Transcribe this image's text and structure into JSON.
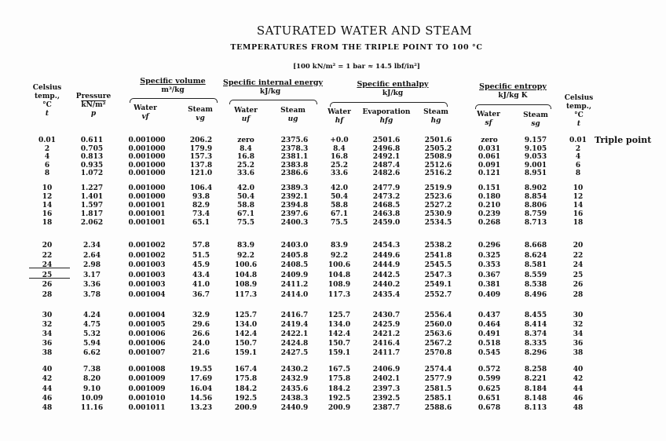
{
  "title": "SATURATED WATER AND STEAM",
  "subtitle": "TEMPERATURES FROM THE TRIPLE POINT TO 100 °C",
  "note": "[100 kN/m² = 1 bar ≈ 14.5 lbf/in²]",
  "headers": {
    "temp_left": [
      "Celsius",
      "temp.,",
      "°C",
      "t"
    ],
    "pressure": [
      "Pressure",
      "kN/m²",
      "p"
    ],
    "specific_volume": {
      "group": "Specific volume",
      "unit": "m³/kg",
      "water": [
        "Water",
        "vf"
      ],
      "steam": [
        "Steam",
        "vg"
      ]
    },
    "internal_energy": {
      "group": "Specific internal energy",
      "unit": "kJ/kg",
      "water": [
        "Water",
        "uf"
      ],
      "steam": [
        "Steam",
        "ug"
      ]
    },
    "enthalpy": {
      "group": "Specific enthalpy",
      "unit": "kJ/kg",
      "water": [
        "Water",
        "hf"
      ],
      "evap": [
        "Evaporation",
        "hfg"
      ],
      "steam": [
        "Steam",
        "hg"
      ]
    },
    "entropy": {
      "group": "Specific entropy",
      "unit": "kJ/kg K",
      "water": [
        "Water",
        "sf"
      ],
      "steam": [
        "Steam",
        "sg"
      ]
    },
    "temp_right": [
      "Celsius",
      "temp.,",
      "°C",
      "t"
    ]
  },
  "triple_point_label": "Triple point",
  "groups": [
    [
      [
        "0.01",
        "0.611",
        "0.001000",
        "206.2",
        "zero",
        "2375.6",
        "+0.0",
        "2501.6",
        "2501.6",
        "zero",
        "9.157",
        "0.01"
      ],
      [
        "2",
        "0.705",
        "0.001000",
        "179.9",
        "8.4",
        "2378.3",
        "8.4",
        "2496.8",
        "2505.2",
        "0.031",
        "9.105",
        "2"
      ],
      [
        "4",
        "0.813",
        "0.001000",
        "157.3",
        "16.8",
        "2381.1",
        "16.8",
        "2492.1",
        "2508.9",
        "0.061",
        "9.053",
        "4"
      ],
      [
        "6",
        "0.935",
        "0.001000",
        "137.8",
        "25.2",
        "2383.8",
        "25.2",
        "2487.4",
        "2512.6",
        "0.091",
        "9.001",
        "6"
      ],
      [
        "8",
        "1.072",
        "0.001000",
        "121.0",
        "33.6",
        "2386.6",
        "33.6",
        "2482.6",
        "2516.2",
        "0.121",
        "8.951",
        "8"
      ]
    ],
    [
      [
        "10",
        "1.227",
        "0.001000",
        "106.4",
        "42.0",
        "2389.3",
        "42.0",
        "2477.9",
        "2519.9",
        "0.151",
        "8.902",
        "10"
      ],
      [
        "12",
        "1.401",
        "0.001000",
        "93.8",
        "50.4",
        "2392.1",
        "50.4",
        "2473.2",
        "2523.6",
        "0.180",
        "8.854",
        "12"
      ],
      [
        "14",
        "1.597",
        "0.001001",
        "82.9",
        "58.8",
        "2394.8",
        "58.8",
        "2468.5",
        "2527.2",
        "0.210",
        "8.806",
        "14"
      ],
      [
        "16",
        "1.817",
        "0.001001",
        "73.4",
        "67.1",
        "2397.6",
        "67.1",
        "2463.8",
        "2530.9",
        "0.239",
        "8.759",
        "16"
      ],
      [
        "18",
        "2.062",
        "0.001001",
        "65.1",
        "75.5",
        "2400.3",
        "75.5",
        "2459.0",
        "2534.5",
        "0.268",
        "8.713",
        "18"
      ]
    ],
    [
      [
        "20",
        "2.34",
        "0.001002",
        "57.8",
        "83.9",
        "2403.0",
        "83.9",
        "2454.3",
        "2538.2",
        "0.296",
        "8.668",
        "20"
      ],
      [
        "22",
        "2.64",
        "0.001002",
        "51.5",
        "92.2",
        "2405.8",
        "92.2",
        "2449.6",
        "2541.8",
        "0.325",
        "8.624",
        "22"
      ],
      [
        "24",
        "2.98",
        "0.001003",
        "45.9",
        "100.6",
        "2408.5",
        "100.6",
        "2444.9",
        "2545.5",
        "0.353",
        "8.581",
        "24"
      ],
      [
        "25",
        "3.17",
        "0.001003",
        "43.4",
        "104.8",
        "2409.9",
        "104.8",
        "2442.5",
        "2547.3",
        "0.367",
        "8.559",
        "25"
      ],
      [
        "26",
        "3.36",
        "0.001003",
        "41.0",
        "108.9",
        "2411.2",
        "108.9",
        "2440.2",
        "2549.1",
        "0.381",
        "8.538",
        "26"
      ],
      [
        "28",
        "3.78",
        "0.001004",
        "36.7",
        "117.3",
        "2414.0",
        "117.3",
        "2435.4",
        "2552.7",
        "0.409",
        "8.496",
        "28"
      ]
    ],
    [
      [
        "30",
        "4.24",
        "0.001004",
        "32.9",
        "125.7",
        "2416.7",
        "125.7",
        "2430.7",
        "2556.4",
        "0.437",
        "8.455",
        "30"
      ],
      [
        "32",
        "4.75",
        "0.001005",
        "29.6",
        "134.0",
        "2419.4",
        "134.0",
        "2425.9",
        "2560.0",
        "0.464",
        "8.414",
        "32"
      ],
      [
        "34",
        "5.32",
        "0.001006",
        "26.6",
        "142.4",
        "2422.1",
        "142.4",
        "2421.2",
        "2563.6",
        "0.491",
        "8.374",
        "34"
      ],
      [
        "36",
        "5.94",
        "0.001006",
        "24.0",
        "150.7",
        "2424.8",
        "150.7",
        "2416.4",
        "2567.2",
        "0.518",
        "8.335",
        "36"
      ],
      [
        "38",
        "6.62",
        "0.001007",
        "21.6",
        "159.1",
        "2427.5",
        "159.1",
        "2411.7",
        "2570.8",
        "0.545",
        "8.296",
        "38"
      ]
    ],
    [
      [
        "40",
        "7.38",
        "0.001008",
        "19.55",
        "167.4",
        "2430.2",
        "167.5",
        "2406.9",
        "2574.4",
        "0.572",
        "8.258",
        "40"
      ],
      [
        "42",
        "8.20",
        "0.001009",
        "17.69",
        "175.8",
        "2432.9",
        "175.8",
        "2402.1",
        "2577.9",
        "0.599",
        "8.221",
        "42"
      ],
      [
        "44",
        "9.10",
        "0.001009",
        "16.04",
        "184.2",
        "2435.6",
        "184.2",
        "2397.3",
        "2581.5",
        "0.625",
        "8.184",
        "44"
      ],
      [
        "46",
        "10.09",
        "0.001010",
        "14.56",
        "192.5",
        "2438.3",
        "192.5",
        "2392.5",
        "2585.1",
        "0.651",
        "8.148",
        "46"
      ],
      [
        "48",
        "11.16",
        "0.001011",
        "13.23",
        "200.9",
        "2440.9",
        "200.9",
        "2387.7",
        "2588.6",
        "0.678",
        "8.113",
        "48"
      ]
    ]
  ]
}
